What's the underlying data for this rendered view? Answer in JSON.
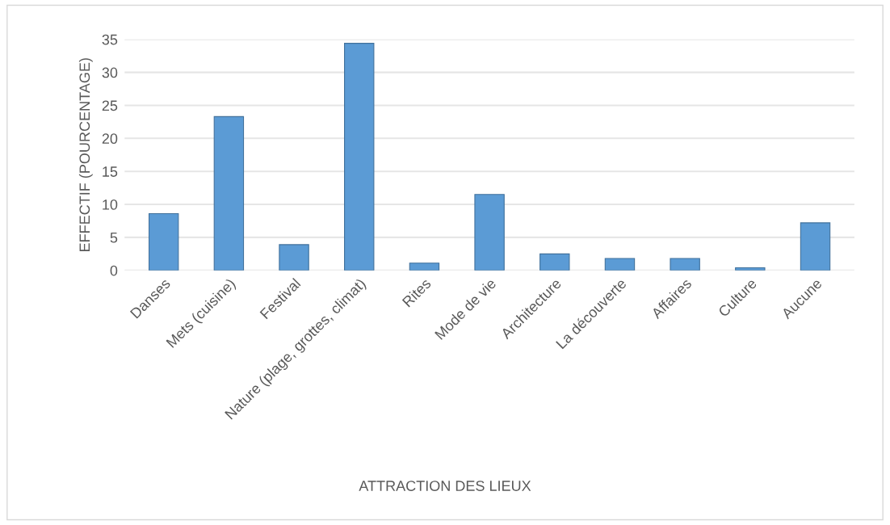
{
  "chart_data": {
    "type": "bar",
    "xlabel": "ATTRACTION DES LIEUX",
    "ylabel": "EFFECTIF (POURCENTAGE)",
    "categories": [
      "Danses",
      "Mets (cuisine)",
      "Festival",
      "Nature (plage, grottes, climat)",
      "Rites",
      "Mode de vie",
      "Architecture",
      "La découverte",
      "Affaires",
      "Culture",
      "Aucune"
    ],
    "values": [
      8.6,
      23.3,
      3.9,
      34.4,
      1.1,
      11.5,
      2.5,
      1.8,
      1.8,
      0.4,
      7.2
    ],
    "color": "#5b9bd5",
    "ylim": [
      0,
      35
    ],
    "yticks": [
      0,
      5,
      10,
      15,
      20,
      25,
      30,
      35
    ],
    "grid": "y"
  }
}
